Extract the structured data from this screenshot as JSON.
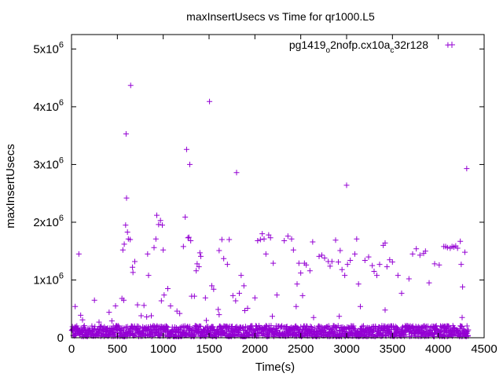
{
  "chart_data": {
    "type": "scatter",
    "title": "maxInsertUsecs vs Time for qr1000.L5",
    "xlabel": "Time(s)",
    "ylabel": "maxInsertUsecs",
    "xlim": [
      0,
      4500
    ],
    "ylim": [
      0,
      5250000
    ],
    "grid": false,
    "legend_position": "top-right",
    "x_ticks": [
      0,
      500,
      1000,
      1500,
      2000,
      2500,
      3000,
      3500,
      4000,
      4500
    ],
    "x_tick_labels": [
      "0",
      "500",
      "1000",
      "1500",
      "2000",
      "2500",
      "3000",
      "3500",
      "4000",
      "4500"
    ],
    "y_ticks": [
      {
        "value": 0,
        "base": "0",
        "exp": ""
      },
      {
        "value": 1000000,
        "base": "1x10",
        "exp": "6"
      },
      {
        "value": 2000000,
        "base": "2x10",
        "exp": "6"
      },
      {
        "value": 3000000,
        "base": "3x10",
        "exp": "6"
      },
      {
        "value": 4000000,
        "base": "4x10",
        "exp": "6"
      },
      {
        "value": 5000000,
        "base": "5x10",
        "exp": "6"
      }
    ],
    "series": [
      {
        "name": "pg1419_o2nofp.cx10a_c32r128",
        "legend_parts": [
          {
            "text": "pg1419",
            "sub": false
          },
          {
            "text": "o",
            "sub": true
          },
          {
            "text": "2nofp.cx10a",
            "sub": false
          },
          {
            "text": "c",
            "sub": true
          },
          {
            "text": "32r128",
            "sub": false
          }
        ],
        "color": "#9400d3",
        "marker": "plus",
        "baseline_band": {
          "x_start": 0,
          "x_end": 4320,
          "y_min": 20000,
          "y_max": 210000
        },
        "points": [
          [
            10,
            190000
          ],
          [
            40,
            540000
          ],
          [
            80,
            1450000
          ],
          [
            100,
            390000
          ],
          [
            120,
            310000
          ],
          [
            250,
            650000
          ],
          [
            300,
            270000
          ],
          [
            410,
            440000
          ],
          [
            440,
            290000
          ],
          [
            480,
            550000
          ],
          [
            550,
            680000
          ],
          [
            560,
            1520000
          ],
          [
            570,
            650000
          ],
          [
            575,
            1620000
          ],
          [
            590,
            1950000
          ],
          [
            595,
            3530000
          ],
          [
            600,
            2420000
          ],
          [
            610,
            1830000
          ],
          [
            620,
            1710000
          ],
          [
            640,
            1700000
          ],
          [
            645,
            4370000
          ],
          [
            665,
            1220000
          ],
          [
            670,
            1130000
          ],
          [
            690,
            1320000
          ],
          [
            720,
            570000
          ],
          [
            760,
            380000
          ],
          [
            790,
            560000
          ],
          [
            830,
            1450000
          ],
          [
            840,
            1080000
          ],
          [
            870,
            380000
          ],
          [
            900,
            1560000
          ],
          [
            920,
            1710000
          ],
          [
            930,
            2120000
          ],
          [
            950,
            1960000
          ],
          [
            970,
            2030000
          ],
          [
            990,
            1950000
          ],
          [
            1000,
            1520000
          ],
          [
            1010,
            740000
          ],
          [
            1050,
            850000
          ],
          [
            1080,
            550000
          ],
          [
            1180,
            420000
          ],
          [
            1220,
            1580000
          ],
          [
            1240,
            2090000
          ],
          [
            1255,
            3260000
          ],
          [
            1270,
            1730000
          ],
          [
            1280,
            1740000
          ],
          [
            1290,
            3000000
          ],
          [
            1300,
            1680000
          ],
          [
            1310,
            720000
          ],
          [
            1340,
            720000
          ],
          [
            1360,
            1160000
          ],
          [
            1370,
            1280000
          ],
          [
            1390,
            1230000
          ],
          [
            1400,
            1470000
          ],
          [
            1410,
            1410000
          ],
          [
            1460,
            690000
          ],
          [
            1470,
            300000
          ],
          [
            1505,
            4090000
          ],
          [
            1530,
            900000
          ],
          [
            1550,
            840000
          ],
          [
            1600,
            490000
          ],
          [
            1610,
            1510000
          ],
          [
            1640,
            1700000
          ],
          [
            1660,
            1370000
          ],
          [
            1700,
            1270000
          ],
          [
            1720,
            1700000
          ],
          [
            1760,
            730000
          ],
          [
            1790,
            640000
          ],
          [
            1800,
            2860000
          ],
          [
            1830,
            770000
          ],
          [
            1850,
            1080000
          ],
          [
            1880,
            900000
          ],
          [
            1920,
            510000
          ],
          [
            2000,
            690000
          ],
          [
            2030,
            1680000
          ],
          [
            2060,
            1700000
          ],
          [
            2080,
            1800000
          ],
          [
            2100,
            1710000
          ],
          [
            2120,
            1450000
          ],
          [
            2150,
            1780000
          ],
          [
            2170,
            1730000
          ],
          [
            2200,
            1290000
          ],
          [
            2240,
            740000
          ],
          [
            2320,
            1680000
          ],
          [
            2360,
            1760000
          ],
          [
            2400,
            1710000
          ],
          [
            2420,
            1520000
          ],
          [
            2460,
            930000
          ],
          [
            2480,
            1290000
          ],
          [
            2500,
            1120000
          ],
          [
            2520,
            730000
          ],
          [
            2540,
            1290000
          ],
          [
            2560,
            1260000
          ],
          [
            2600,
            1160000
          ],
          [
            2630,
            1660000
          ],
          [
            2700,
            1410000
          ],
          [
            2730,
            1430000
          ],
          [
            2760,
            1380000
          ],
          [
            2800,
            1320000
          ],
          [
            2820,
            1240000
          ],
          [
            2840,
            1320000
          ],
          [
            2880,
            1690000
          ],
          [
            2910,
            1310000
          ],
          [
            2930,
            1510000
          ],
          [
            2950,
            1180000
          ],
          [
            2980,
            1080000
          ],
          [
            3000,
            2640000
          ],
          [
            3010,
            1270000
          ],
          [
            3040,
            1340000
          ],
          [
            3090,
            1450000
          ],
          [
            3110,
            1710000
          ],
          [
            3130,
            930000
          ],
          [
            3200,
            1340000
          ],
          [
            3240,
            1400000
          ],
          [
            3280,
            1250000
          ],
          [
            3300,
            1150000
          ],
          [
            3330,
            1080000
          ],
          [
            3360,
            1270000
          ],
          [
            3400,
            1600000
          ],
          [
            3420,
            1640000
          ],
          [
            3440,
            1230000
          ],
          [
            3470,
            1350000
          ],
          [
            3500,
            1310000
          ],
          [
            3560,
            1080000
          ],
          [
            3600,
            770000
          ],
          [
            3680,
            1020000
          ],
          [
            3720,
            1450000
          ],
          [
            3760,
            1540000
          ],
          [
            3800,
            1430000
          ],
          [
            3840,
            1460000
          ],
          [
            3860,
            1500000
          ],
          [
            3900,
            950000
          ],
          [
            3960,
            1280000
          ],
          [
            4010,
            1260000
          ],
          [
            4060,
            1580000
          ],
          [
            4080,
            1580000
          ],
          [
            4100,
            1560000
          ],
          [
            4130,
            1550000
          ],
          [
            4150,
            1580000
          ],
          [
            4170,
            1570000
          ],
          [
            4190,
            1590000
          ],
          [
            4210,
            1550000
          ],
          [
            4240,
            1670000
          ],
          [
            4250,
            1270000
          ],
          [
            4265,
            880000
          ],
          [
            4290,
            1480000
          ],
          [
            4310,
            2930000
          ],
          [
            4260,
            350000
          ],
          [
            3420,
            480000
          ],
          [
            3150,
            540000
          ],
          [
            2920,
            370000
          ],
          [
            2640,
            350000
          ],
          [
            2450,
            540000
          ],
          [
            2190,
            370000
          ],
          [
            1890,
            470000
          ],
          [
            1610,
            400000
          ],
          [
            1150,
            460000
          ],
          [
            980,
            640000
          ],
          [
            820,
            360000
          ],
          [
            4105,
            5070000
          ]
        ]
      }
    ]
  }
}
